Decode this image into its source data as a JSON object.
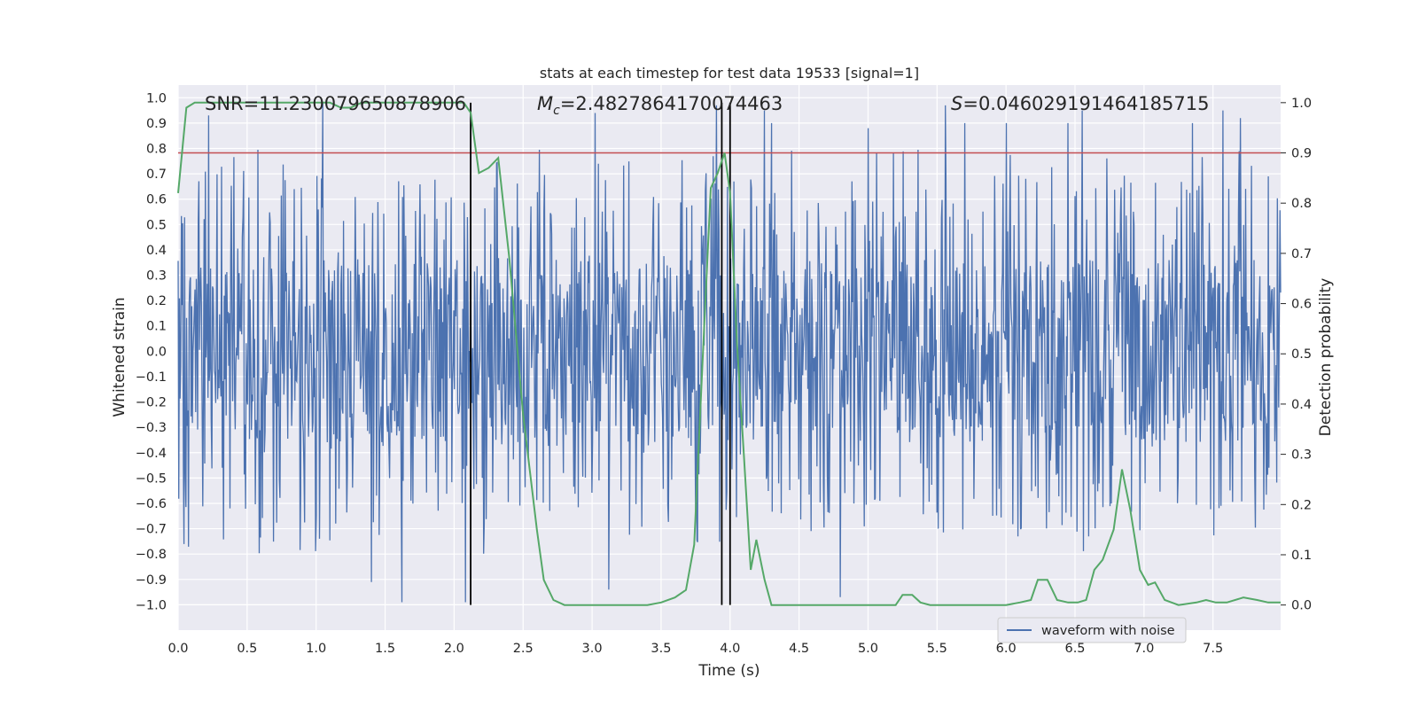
{
  "chart_data": {
    "type": "line",
    "title": "stats at each timestep for test data 19533 [signal=1]",
    "xlabel": "Time (s)",
    "ylabel": "Whitened strain",
    "ylabel_right": "Detection probability",
    "xlim": [
      0.0,
      7.99
    ],
    "ylim_left": [
      -1.1,
      1.05
    ],
    "ylim_right": [
      -0.05,
      1.035
    ],
    "x_ticks": [
      "0.0",
      "0.5",
      "1.0",
      "1.5",
      "2.0",
      "2.5",
      "3.0",
      "3.5",
      "4.0",
      "4.5",
      "5.0",
      "5.5",
      "6.0",
      "6.5",
      "7.0",
      "7.5"
    ],
    "y_ticks_left": [
      "1.0",
      "0.9",
      "0.8",
      "0.7",
      "0.6",
      "0.5",
      "0.4",
      "0.3",
      "0.2",
      "0.1",
      "0.0",
      "−0.1",
      "−0.2",
      "−0.3",
      "−0.4",
      "−0.5",
      "−0.6",
      "−0.7",
      "−0.8",
      "−0.9",
      "−1.0"
    ],
    "y_ticks_right": [
      "1.0",
      "0.9",
      "0.8",
      "0.7",
      "0.6",
      "0.5",
      "0.4",
      "0.3",
      "0.2",
      "0.1",
      "0.0"
    ],
    "annotations": {
      "snr": "SNR=11.230079650878906",
      "mc_sym": "M",
      "mc_sub": "c",
      "mc_val": "=2.4827864170074463",
      "s_sym": "S",
      "s_val": "=0.046029191464185715"
    },
    "legend": {
      "label": "waveform with noise",
      "location": "lower right"
    },
    "threshold": {
      "value": 0.9,
      "axis": "right",
      "color": "#c44e52"
    },
    "vlines": [
      2.12,
      3.94,
      4.0
    ],
    "series": [
      {
        "name": "waveform with noise",
        "axis": "left",
        "color": "#4c72b0",
        "style": "dense noise, typical amplitude about ±0.4, sparse peaks up to ±1.0",
        "peaks": [
          [
            0.22,
            0.93
          ],
          [
            1.05,
            0.98
          ],
          [
            1.4,
            -0.91
          ],
          [
            1.62,
            -0.99
          ],
          [
            2.08,
            -0.99
          ],
          [
            3.02,
            0.94
          ],
          [
            3.12,
            -0.94
          ],
          [
            3.9,
            0.97
          ],
          [
            4.25,
            0.95
          ],
          [
            4.8,
            -0.97
          ],
          [
            5.56,
            0.97
          ],
          [
            6.55,
            0.95
          ],
          [
            6.45,
            0.9
          ],
          [
            7.57,
            0.95
          ],
          [
            7.7,
            0.92
          ],
          [
            7.35,
            0.9
          ],
          [
            4.3,
            0.9
          ],
          [
            5.0,
            0.88
          ],
          [
            5.7,
            0.9
          ],
          [
            6.0,
            0.9
          ]
        ]
      },
      {
        "name": "Detection probability",
        "axis": "right",
        "color": "#55a868",
        "x": [
          0.0,
          0.06,
          0.12,
          0.2,
          0.3,
          0.4,
          0.5,
          0.6,
          0.7,
          0.8,
          0.9,
          1.0,
          1.1,
          1.18,
          1.25,
          1.33,
          1.4,
          1.5,
          1.6,
          1.7,
          1.8,
          1.9,
          2.0,
          2.07,
          2.12,
          2.18,
          2.25,
          2.32,
          2.4,
          2.5,
          2.6,
          2.65,
          2.72,
          2.8,
          2.9,
          3.0,
          3.2,
          3.4,
          3.5,
          3.6,
          3.68,
          3.74,
          3.8,
          3.86,
          3.91,
          3.96,
          4.0,
          4.05,
          4.1,
          4.15,
          4.19,
          4.25,
          4.3,
          4.38,
          4.45,
          4.55,
          4.7,
          4.9,
          5.1,
          5.2,
          5.25,
          5.32,
          5.38,
          5.45,
          5.6,
          5.8,
          6.0,
          6.1,
          6.18,
          6.23,
          6.3,
          6.37,
          6.45,
          6.52,
          6.58,
          6.64,
          6.7,
          6.78,
          6.84,
          6.9,
          6.97,
          7.03,
          7.08,
          7.15,
          7.25,
          7.38,
          7.45,
          7.52,
          7.6,
          7.72,
          7.82,
          7.9,
          7.99
        ],
        "values": [
          0.82,
          0.99,
          1.0,
          1.0,
          1.0,
          1.0,
          1.0,
          1.0,
          1.0,
          1.0,
          1.0,
          1.0,
          1.0,
          0.99,
          0.99,
          1.0,
          1.0,
          1.0,
          1.0,
          1.0,
          1.0,
          1.0,
          1.0,
          1.0,
          0.98,
          0.86,
          0.87,
          0.89,
          0.69,
          0.38,
          0.15,
          0.05,
          0.01,
          0.0,
          0.0,
          0.0,
          0.0,
          0.0,
          0.005,
          0.015,
          0.03,
          0.12,
          0.48,
          0.83,
          0.86,
          0.9,
          0.82,
          0.52,
          0.3,
          0.07,
          0.13,
          0.05,
          0.0,
          0.0,
          0.0,
          0.0,
          0.0,
          0.0,
          0.0,
          0.0,
          0.02,
          0.02,
          0.005,
          0.0,
          0.0,
          0.0,
          0.0,
          0.005,
          0.01,
          0.05,
          0.05,
          0.01,
          0.005,
          0.005,
          0.01,
          0.07,
          0.09,
          0.15,
          0.27,
          0.19,
          0.07,
          0.04,
          0.045,
          0.01,
          0.0,
          0.005,
          0.01,
          0.005,
          0.005,
          0.015,
          0.01,
          0.005,
          0.005
        ]
      }
    ]
  }
}
